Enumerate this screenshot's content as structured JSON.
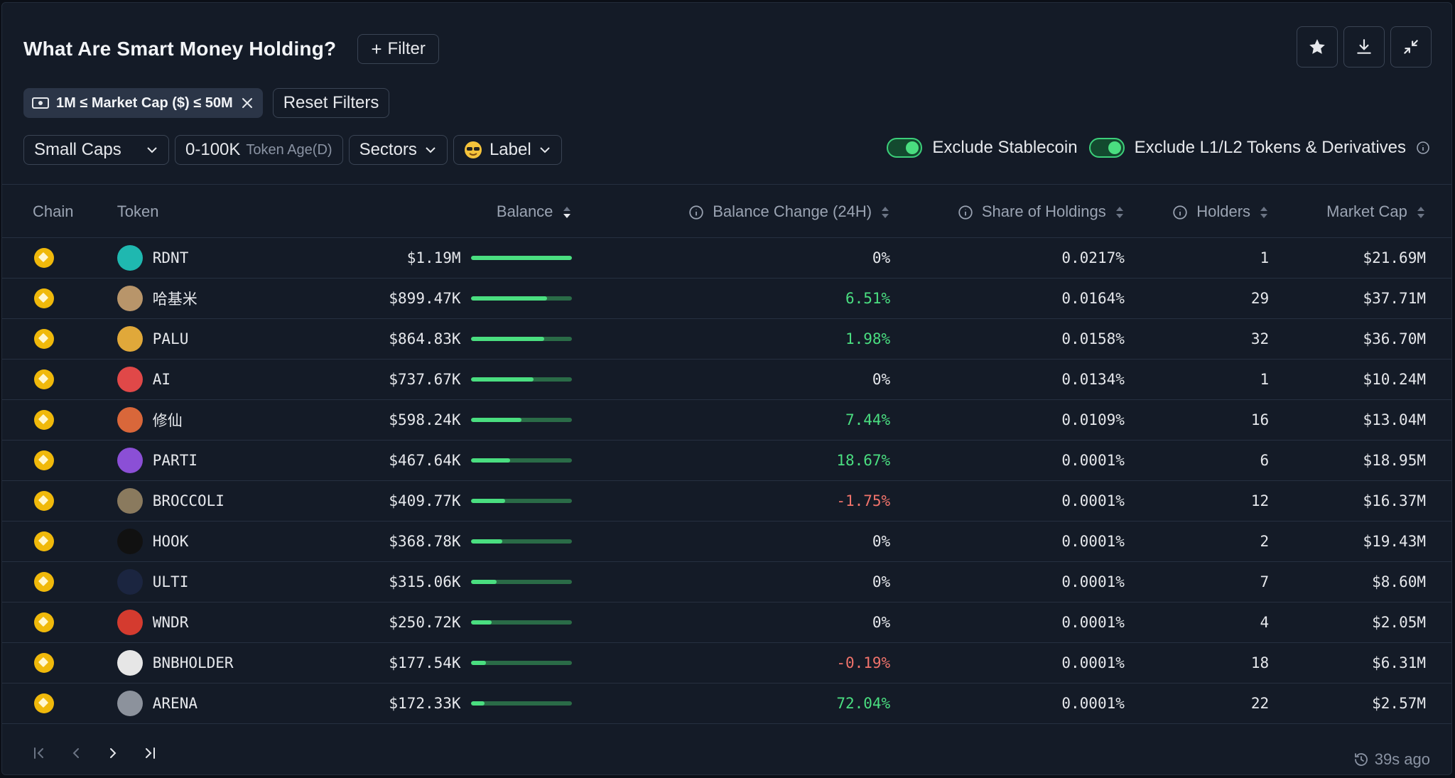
{
  "header": {
    "title": "What Are Smart Money Holding?",
    "filter_label": "Filter"
  },
  "actions": [
    "star-icon",
    "download-icon",
    "collapse-icon"
  ],
  "active_filter": {
    "label": "1M ≤ Market Cap ($) ≤ 50M"
  },
  "reset_label": "Reset Filters",
  "filters": {
    "caps": "Small Caps",
    "age_value": "0-100K",
    "age_label": "Token Age(D)",
    "sectors": "Sectors",
    "label": "Label"
  },
  "toggles": {
    "stablecoin": "Exclude Stablecoin",
    "l1l2": "Exclude L1/L2 Tokens & Derivatives"
  },
  "columns": {
    "chain": "Chain",
    "token": "Token",
    "balance": "Balance",
    "change": "Balance Change (24H)",
    "share": "Share of Holdings",
    "holders": "Holders",
    "mcap": "Market Cap"
  },
  "rows": [
    {
      "token": "RDNT",
      "balance": "$1.19M",
      "bar_fraction": 1.0,
      "change": "0%",
      "trend": "flat",
      "share": "0.0217%",
      "holders": "1",
      "mcap": "$21.69M",
      "icon_color": "#1fb8b0"
    },
    {
      "token": "哈基米",
      "balance": "$899.47K",
      "bar_fraction": 0.76,
      "change": "6.51%",
      "trend": "up",
      "share": "0.0164%",
      "holders": "29",
      "mcap": "$37.71M",
      "icon_color": "#b8956a"
    },
    {
      "token": "PALU",
      "balance": "$864.83K",
      "bar_fraction": 0.73,
      "change": "1.98%",
      "trend": "up",
      "share": "0.0158%",
      "holders": "32",
      "mcap": "$36.70M",
      "icon_color": "#e0a83a"
    },
    {
      "token": "AI",
      "balance": "$737.67K",
      "bar_fraction": 0.62,
      "change": "0%",
      "trend": "flat",
      "share": "0.0134%",
      "holders": "1",
      "mcap": "$10.24M",
      "icon_color": "#e04848"
    },
    {
      "token": "修仙",
      "balance": "$598.24K",
      "bar_fraction": 0.5,
      "change": "7.44%",
      "trend": "up",
      "share": "0.0109%",
      "holders": "16",
      "mcap": "$13.04M",
      "icon_color": "#d9673a"
    },
    {
      "token": "PARTI",
      "balance": "$467.64K",
      "bar_fraction": 0.39,
      "change": "18.67%",
      "trend": "up",
      "share": "0.0001%",
      "holders": "6",
      "mcap": "$18.95M",
      "icon_color": "#8b4fd6"
    },
    {
      "token": "BROCCOLI",
      "balance": "$409.77K",
      "bar_fraction": 0.34,
      "change": "-1.75%",
      "trend": "down",
      "share": "0.0001%",
      "holders": "12",
      "mcap": "$16.37M",
      "icon_color": "#8a7a5e"
    },
    {
      "token": "HOOK",
      "balance": "$368.78K",
      "bar_fraction": 0.31,
      "change": "0%",
      "trend": "flat",
      "share": "0.0001%",
      "holders": "2",
      "mcap": "$19.43M",
      "icon_color": "#111111"
    },
    {
      "token": "ULTI",
      "balance": "$315.06K",
      "bar_fraction": 0.26,
      "change": "0%",
      "trend": "flat",
      "share": "0.0001%",
      "holders": "7",
      "mcap": "$8.60M",
      "icon_color": "#1b2540"
    },
    {
      "token": "WNDR",
      "balance": "$250.72K",
      "bar_fraction": 0.21,
      "change": "0%",
      "trend": "flat",
      "share": "0.0001%",
      "holders": "4",
      "mcap": "$2.05M",
      "icon_color": "#d43b2f"
    },
    {
      "token": "BNBHOLDER",
      "balance": "$177.54K",
      "bar_fraction": 0.15,
      "change": "-0.19%",
      "trend": "down",
      "share": "0.0001%",
      "holders": "18",
      "mcap": "$6.31M",
      "icon_color": "#e6e6e6"
    },
    {
      "token": "ARENA",
      "balance": "$172.33K",
      "bar_fraction": 0.14,
      "change": "72.04%",
      "trend": "up",
      "share": "0.0001%",
      "holders": "22",
      "mcap": "$2.57M",
      "icon_color": "#8c929c"
    }
  ],
  "footer": {
    "updated": "39s ago"
  }
}
